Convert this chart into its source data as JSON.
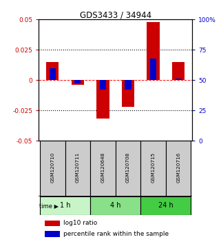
{
  "title": "GDS3433 / 34944",
  "samples": [
    "GSM120710",
    "GSM120711",
    "GSM120648",
    "GSM120708",
    "GSM120715",
    "GSM120716"
  ],
  "time_groups": [
    {
      "label": "1 h",
      "start": 0,
      "end": 2,
      "color": "#c8f5c8"
    },
    {
      "label": "4 h",
      "start": 2,
      "end": 4,
      "color": "#88e088"
    },
    {
      "label": "24 h",
      "start": 4,
      "end": 6,
      "color": "#44cc44"
    }
  ],
  "log10_ratio": [
    0.015,
    -0.004,
    -0.032,
    -0.022,
    0.048,
    0.015
  ],
  "percentile_rank_pct": [
    60,
    47,
    42,
    42,
    68,
    51
  ],
  "bar_width": 0.5,
  "blue_bar_width": 0.25,
  "ylim": [
    -0.05,
    0.05
  ],
  "y2lim": [
    0,
    100
  ],
  "yticks": [
    -0.05,
    -0.025,
    0,
    0.025,
    0.05
  ],
  "ytick_labels": [
    "-0.05",
    "-0.025",
    "0",
    "0.025",
    "0.05"
  ],
  "y2ticks": [
    0,
    25,
    50,
    75,
    100
  ],
  "y2tick_labels": [
    "0",
    "25",
    "50",
    "75",
    "100%"
  ],
  "red_color": "#cc0000",
  "blue_color": "#0000cc",
  "legend_red": "log10 ratio",
  "legend_blue": "percentile rank within the sample",
  "bg_sample_label": "#cccccc",
  "title_fontsize": 8.5
}
